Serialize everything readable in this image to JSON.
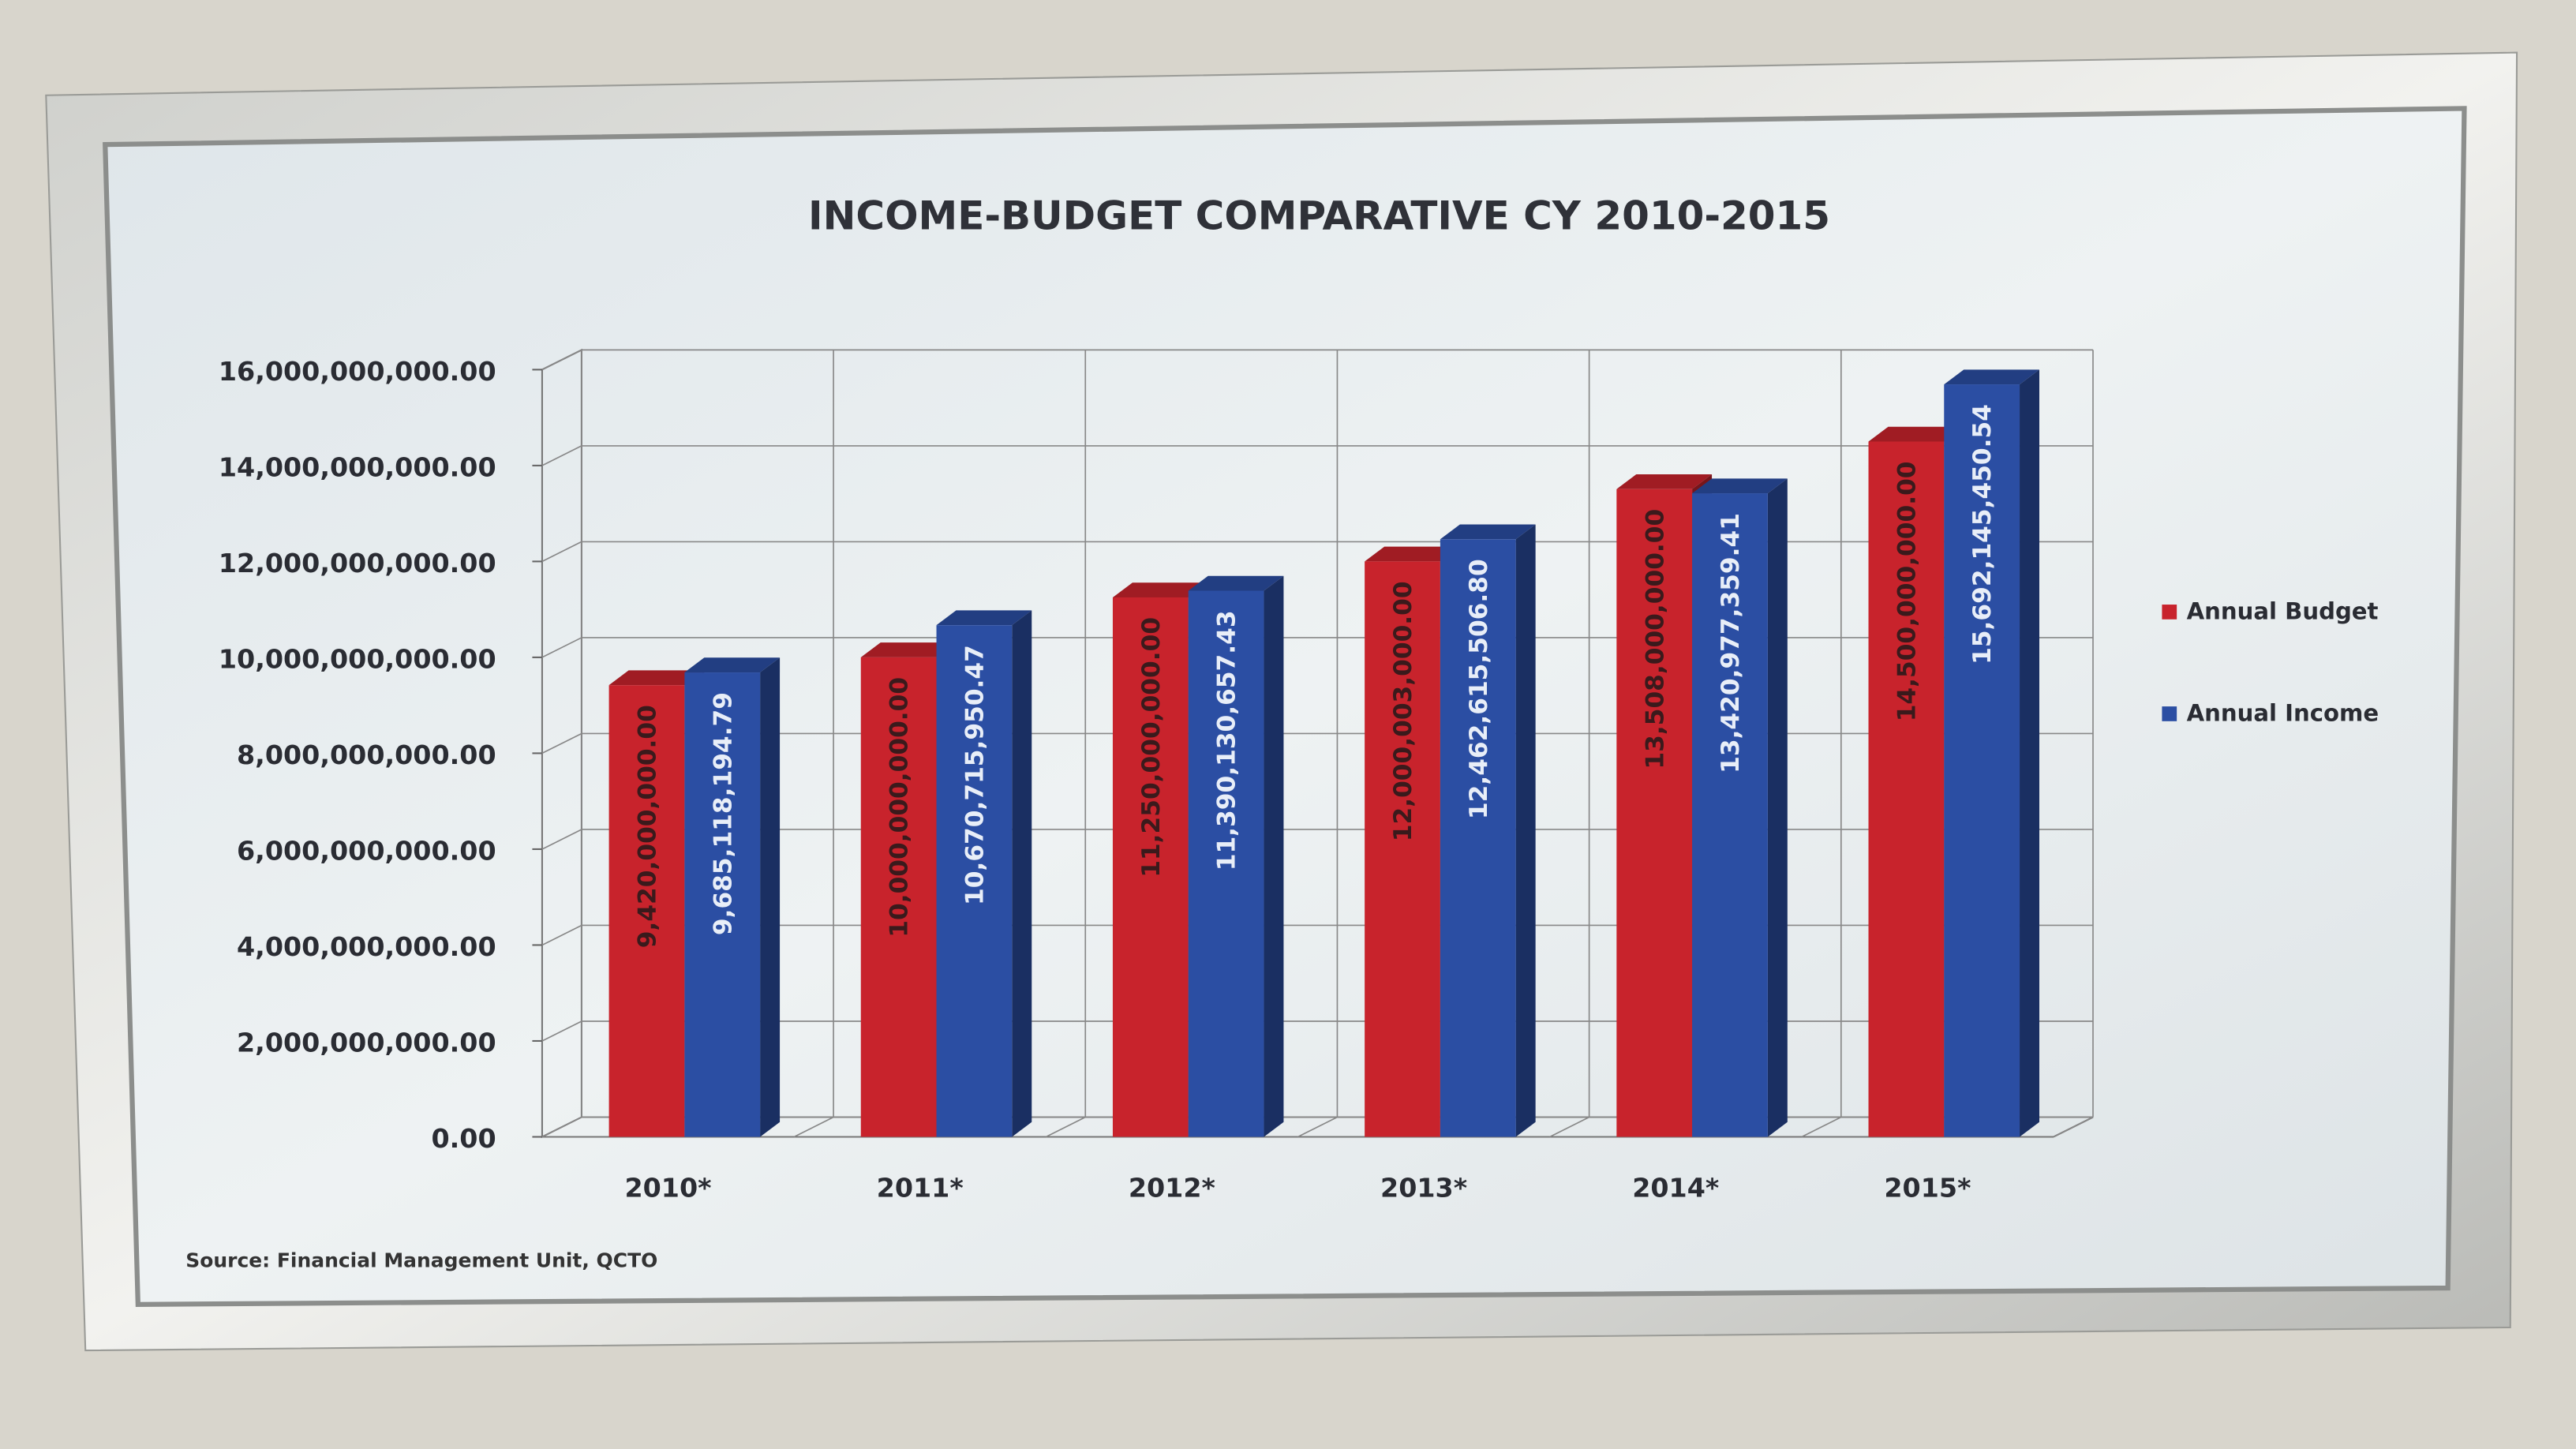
{
  "chart_data": {
    "type": "bar",
    "title": "INCOME-BUDGET COMPARATIVE CY 2010-2015",
    "source": "Source: Financial Management Unit, QCTO",
    "categories": [
      "2010*",
      "2011*",
      "2012*",
      "2013*",
      "2014*",
      "2015*"
    ],
    "series": [
      {
        "name": "Annual Budget",
        "color": "#c8232c",
        "values": [
          9420000000,
          10000000000,
          11250000000,
          12000003000,
          13508000000,
          14500000000
        ],
        "value_labels": [
          "9,420,000,000.00",
          "10,000,000,000.00",
          "11,250,000,000.00",
          "12,000,003,000.00",
          "13,508,000,000.00",
          "14,500,000,000.00"
        ]
      },
      {
        "name": "Annual Income",
        "color": "#2b4ea3",
        "values": [
          9685118194.79,
          10670715950.47,
          11390130657.43,
          12462615506.8,
          13420977359.41,
          15692145450.54
        ],
        "value_labels": [
          "9,685,118,194.79",
          "10,670,715,950.47",
          "11,390,130,657.43",
          "12,462,615,506.80",
          "13,420,977,359.41",
          "15,692,145,450.54"
        ]
      }
    ],
    "ylim": [
      0,
      16000000000
    ],
    "yticks": [
      {
        "value": 0,
        "label": "0.00"
      },
      {
        "value": 2000000000,
        "label": "2,000,000,000.00"
      },
      {
        "value": 4000000000,
        "label": "4,000,000,000.00"
      },
      {
        "value": 6000000000,
        "label": "6,000,000,000.00"
      },
      {
        "value": 8000000000,
        "label": "8,000,000,000.00"
      },
      {
        "value": 10000000000,
        "label": "10,000,000,000.00"
      },
      {
        "value": 12000000000,
        "label": "12,000,000,000.00"
      },
      {
        "value": 14000000000,
        "label": "14,000,000,000.00"
      },
      {
        "value": 16000000000,
        "label": "16,000,000,000.00"
      }
    ],
    "grid": true,
    "legend": "right"
  }
}
